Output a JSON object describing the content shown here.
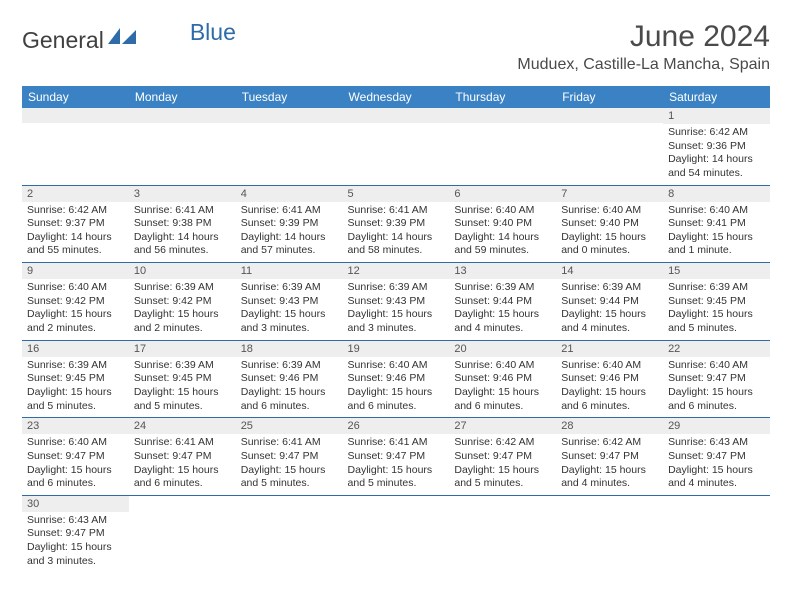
{
  "logo": {
    "text1": "General",
    "text2": "Blue"
  },
  "title": "June 2024",
  "location": "Muduex, Castille-La Mancha, Spain",
  "colors": {
    "header_bg": "#3a82c4",
    "row_border": "#2e6ba8",
    "daynum_bg": "#eeeeee",
    "logo_flag": "#2e6ba8",
    "title_color": "#4a4a4a"
  },
  "dayHeaders": [
    "Sunday",
    "Monday",
    "Tuesday",
    "Wednesday",
    "Thursday",
    "Friday",
    "Saturday"
  ],
  "weeks": [
    [
      null,
      null,
      null,
      null,
      null,
      null,
      {
        "n": "1",
        "sr": "6:42 AM",
        "ss": "9:36 PM",
        "dl": "14 hours and 54 minutes."
      }
    ],
    [
      {
        "n": "2",
        "sr": "6:42 AM",
        "ss": "9:37 PM",
        "dl": "14 hours and 55 minutes."
      },
      {
        "n": "3",
        "sr": "6:41 AM",
        "ss": "9:38 PM",
        "dl": "14 hours and 56 minutes."
      },
      {
        "n": "4",
        "sr": "6:41 AM",
        "ss": "9:39 PM",
        "dl": "14 hours and 57 minutes."
      },
      {
        "n": "5",
        "sr": "6:41 AM",
        "ss": "9:39 PM",
        "dl": "14 hours and 58 minutes."
      },
      {
        "n": "6",
        "sr": "6:40 AM",
        "ss": "9:40 PM",
        "dl": "14 hours and 59 minutes."
      },
      {
        "n": "7",
        "sr": "6:40 AM",
        "ss": "9:40 PM",
        "dl": "15 hours and 0 minutes."
      },
      {
        "n": "8",
        "sr": "6:40 AM",
        "ss": "9:41 PM",
        "dl": "15 hours and 1 minute."
      }
    ],
    [
      {
        "n": "9",
        "sr": "6:40 AM",
        "ss": "9:42 PM",
        "dl": "15 hours and 2 minutes."
      },
      {
        "n": "10",
        "sr": "6:39 AM",
        "ss": "9:42 PM",
        "dl": "15 hours and 2 minutes."
      },
      {
        "n": "11",
        "sr": "6:39 AM",
        "ss": "9:43 PM",
        "dl": "15 hours and 3 minutes."
      },
      {
        "n": "12",
        "sr": "6:39 AM",
        "ss": "9:43 PM",
        "dl": "15 hours and 3 minutes."
      },
      {
        "n": "13",
        "sr": "6:39 AM",
        "ss": "9:44 PM",
        "dl": "15 hours and 4 minutes."
      },
      {
        "n": "14",
        "sr": "6:39 AM",
        "ss": "9:44 PM",
        "dl": "15 hours and 4 minutes."
      },
      {
        "n": "15",
        "sr": "6:39 AM",
        "ss": "9:45 PM",
        "dl": "15 hours and 5 minutes."
      }
    ],
    [
      {
        "n": "16",
        "sr": "6:39 AM",
        "ss": "9:45 PM",
        "dl": "15 hours and 5 minutes."
      },
      {
        "n": "17",
        "sr": "6:39 AM",
        "ss": "9:45 PM",
        "dl": "15 hours and 5 minutes."
      },
      {
        "n": "18",
        "sr": "6:39 AM",
        "ss": "9:46 PM",
        "dl": "15 hours and 6 minutes."
      },
      {
        "n": "19",
        "sr": "6:40 AM",
        "ss": "9:46 PM",
        "dl": "15 hours and 6 minutes."
      },
      {
        "n": "20",
        "sr": "6:40 AM",
        "ss": "9:46 PM",
        "dl": "15 hours and 6 minutes."
      },
      {
        "n": "21",
        "sr": "6:40 AM",
        "ss": "9:46 PM",
        "dl": "15 hours and 6 minutes."
      },
      {
        "n": "22",
        "sr": "6:40 AM",
        "ss": "9:47 PM",
        "dl": "15 hours and 6 minutes."
      }
    ],
    [
      {
        "n": "23",
        "sr": "6:40 AM",
        "ss": "9:47 PM",
        "dl": "15 hours and 6 minutes."
      },
      {
        "n": "24",
        "sr": "6:41 AM",
        "ss": "9:47 PM",
        "dl": "15 hours and 6 minutes."
      },
      {
        "n": "25",
        "sr": "6:41 AM",
        "ss": "9:47 PM",
        "dl": "15 hours and 5 minutes."
      },
      {
        "n": "26",
        "sr": "6:41 AM",
        "ss": "9:47 PM",
        "dl": "15 hours and 5 minutes."
      },
      {
        "n": "27",
        "sr": "6:42 AM",
        "ss": "9:47 PM",
        "dl": "15 hours and 5 minutes."
      },
      {
        "n": "28",
        "sr": "6:42 AM",
        "ss": "9:47 PM",
        "dl": "15 hours and 4 minutes."
      },
      {
        "n": "29",
        "sr": "6:43 AM",
        "ss": "9:47 PM",
        "dl": "15 hours and 4 minutes."
      }
    ],
    [
      {
        "n": "30",
        "sr": "6:43 AM",
        "ss": "9:47 PM",
        "dl": "15 hours and 3 minutes."
      },
      null,
      null,
      null,
      null,
      null,
      null
    ]
  ],
  "labels": {
    "sunrise": "Sunrise:",
    "sunset": "Sunset:",
    "daylight": "Daylight:"
  }
}
